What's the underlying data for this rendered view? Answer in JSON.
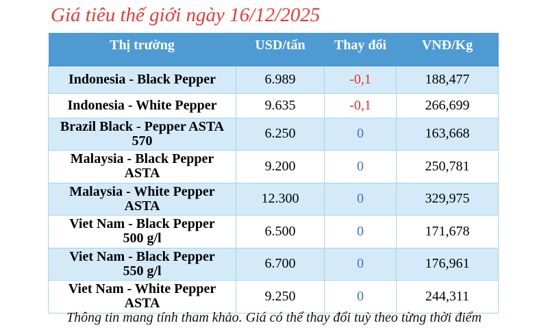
{
  "chart_data": {
    "type": "table",
    "title": "Giá tiêu thế giới ngày 16/12/2025",
    "note": "Thông tin mang tính tham khảo. Giá có thể thay đổi tuỳ theo từng thời điểm",
    "columns": [
      "Thị trường",
      "USD/tấn",
      "Thay đổi",
      "VNĐ/Kg"
    ],
    "rows": [
      [
        "Indonesia - Black Pepper",
        "6.989",
        "-0,1",
        "188,477"
      ],
      [
        "Indonesia - White Pepper",
        "9.635",
        "-0,1",
        "266,699"
      ],
      [
        "Brazil Black - Pepper ASTA 570",
        "6.250",
        "0",
        "163,668"
      ],
      [
        "Malaysia - Black Pepper ASTA",
        "9.200",
        "0",
        "250,781"
      ],
      [
        "Malaysia - White Pepper ASTA",
        "12.300",
        "0",
        "329,975"
      ],
      [
        "Viet Nam - Black Pepper 500 g/l",
        "6.500",
        "0",
        "171,678"
      ],
      [
        "Viet Nam - Black Pepper 550 g/l",
        "6.700",
        "0",
        "176,961"
      ],
      [
        "Viet Nam - White Pepper ASTA",
        "9.250",
        "0",
        "244,311"
      ]
    ],
    "layout": {
      "grid": "bordered-table",
      "row_striping": "odd rows light blue, even rows white",
      "header_position": "top"
    }
  },
  "colors": {
    "header_bg": "#4e9bd4",
    "row_alt_bg": "#d4eaf8",
    "row_bg": "#ffffff",
    "border": "#a4d3ef",
    "header_divider": "#3f8dc5",
    "title_red": "#e73b31",
    "change_negative": "#ee2e24",
    "change_zero": "#4472c4",
    "text": "#000000"
  }
}
